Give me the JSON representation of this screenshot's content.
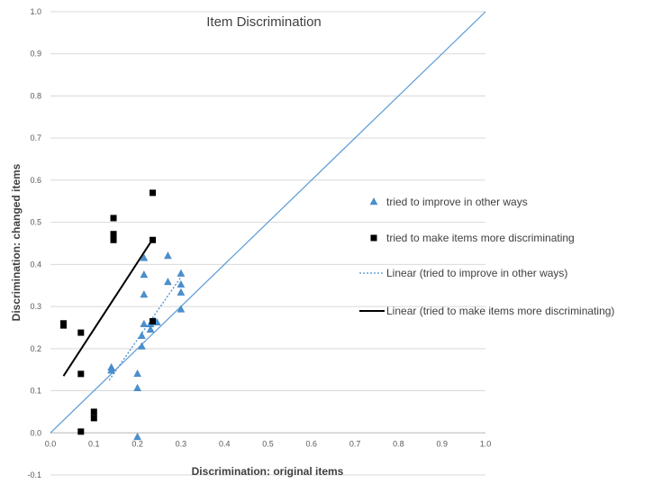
{
  "chart_data": {
    "type": "scatter",
    "title": "Item Discrimination",
    "xlabel": "Discrimination: original items",
    "ylabel": "Discrimination: changed items",
    "xlim": [
      0,
      1
    ],
    "ylim": [
      -0.1,
      1
    ],
    "x_ticks": [
      "0.0",
      "0.1",
      "0.2",
      "0.3",
      "0.4",
      "0.5",
      "0.6",
      "0.7",
      "0.8",
      "0.9",
      "1.0"
    ],
    "y_ticks": [
      "-0.1",
      "0.0",
      "0.1",
      "0.2",
      "0.3",
      "0.4",
      "0.5",
      "0.6",
      "0.7",
      "0.8",
      "0.9",
      "1.0"
    ],
    "grid": "horizontal",
    "legend_position": "right",
    "reference_line": {
      "points": [
        [
          0,
          0
        ],
        [
          1,
          1
        ]
      ],
      "color": "#5b9bd5"
    },
    "series": [
      {
        "name": "tried to improve in other ways",
        "marker": "triangle",
        "color": "#4a90d0",
        "points": [
          [
            0.14,
            0.155
          ],
          [
            0.14,
            0.148
          ],
          [
            0.2,
            0.14
          ],
          [
            0.2,
            0.106
          ],
          [
            0.2,
            -0.01
          ],
          [
            0.21,
            0.205
          ],
          [
            0.21,
            0.23
          ],
          [
            0.215,
            0.415
          ],
          [
            0.215,
            0.375
          ],
          [
            0.215,
            0.328
          ],
          [
            0.215,
            0.258
          ],
          [
            0.23,
            0.258
          ],
          [
            0.23,
            0.245
          ],
          [
            0.24,
            0.265
          ],
          [
            0.245,
            0.262
          ],
          [
            0.27,
            0.42
          ],
          [
            0.27,
            0.358
          ],
          [
            0.3,
            0.378
          ],
          [
            0.3,
            0.352
          ],
          [
            0.3,
            0.333
          ],
          [
            0.3,
            0.293
          ]
        ]
      },
      {
        "name": "tried to make items more discriminating",
        "marker": "square",
        "color": "#000000",
        "points": [
          [
            0.03,
            0.26
          ],
          [
            0.03,
            0.255
          ],
          [
            0.07,
            0.238
          ],
          [
            0.07,
            0.14
          ],
          [
            0.07,
            0.003
          ],
          [
            0.1,
            0.05
          ],
          [
            0.1,
            0.035
          ],
          [
            0.145,
            0.51
          ],
          [
            0.145,
            0.472
          ],
          [
            0.145,
            0.458
          ],
          [
            0.235,
            0.57
          ],
          [
            0.235,
            0.458
          ],
          [
            0.235,
            0.265
          ]
        ]
      }
    ],
    "trendlines": [
      {
        "name": "Linear (tried to improve in other ways)",
        "style": "dotted",
        "color": "#4a90d0",
        "points": [
          [
            0.135,
            0.125
          ],
          [
            0.3,
            0.37
          ]
        ]
      },
      {
        "name": "Linear (tried to make items more discriminating)",
        "style": "solid",
        "color": "#000000",
        "points": [
          [
            0.03,
            0.135
          ],
          [
            0.235,
            0.46
          ]
        ]
      }
    ]
  }
}
